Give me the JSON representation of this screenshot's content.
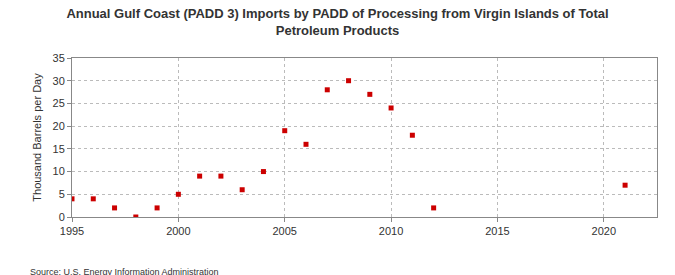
{
  "chart_data": {
    "type": "scatter",
    "title": [
      "Annual Gulf Coast (PADD 3) Imports by PADD of Processing from Virgin Islands of Total",
      "Petroleum Products"
    ],
    "y_label": "Thousand Barrels per Day",
    "source": "Source: U.S. Energy Information Administration",
    "x": [
      1995,
      1996,
      1997,
      1998,
      1999,
      2000,
      2001,
      2002,
      2003,
      2004,
      2005,
      2006,
      2007,
      2008,
      2009,
      2010,
      2011,
      2012,
      2021
    ],
    "values": [
      4,
      4,
      2,
      0,
      2,
      5,
      9,
      9,
      6,
      10,
      19,
      16,
      28,
      30,
      27,
      24,
      18,
      2,
      7
    ],
    "color": "#cc0000",
    "marker": "square",
    "xlim": [
      1995,
      2022.5
    ],
    "xticks": [
      1995,
      2000,
      2005,
      2010,
      2015,
      2020
    ],
    "ylim": [
      0,
      35
    ],
    "yticks": [
      0,
      5,
      10,
      15,
      20,
      25,
      30,
      35
    ],
    "grid": true
  }
}
